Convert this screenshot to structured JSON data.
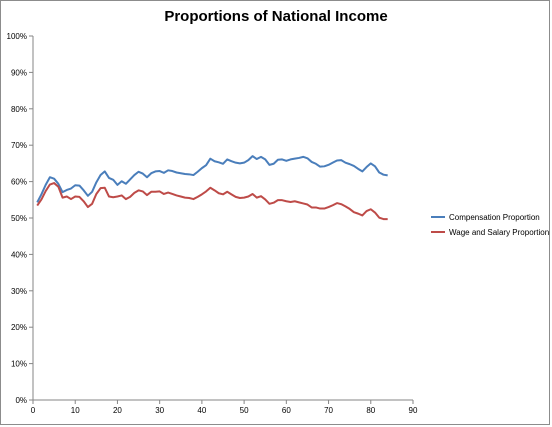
{
  "chart_data": {
    "type": "line",
    "title": "Proportions of National Income",
    "xlabel": "",
    "ylabel": "",
    "xlim": [
      0,
      90
    ],
    "ylim": [
      0,
      100
    ],
    "x_ticks": [
      "0",
      "10",
      "20",
      "30",
      "40",
      "50",
      "60",
      "70",
      "80",
      "90"
    ],
    "y_ticks": [
      "0%",
      "10%",
      "20%",
      "30%",
      "40%",
      "50%",
      "60%",
      "70%",
      "80%",
      "90%",
      "100%"
    ],
    "grid": false,
    "legend_position": "right",
    "x": [
      1,
      2,
      3,
      4,
      5,
      6,
      7,
      8,
      9,
      10,
      11,
      12,
      13,
      14,
      15,
      16,
      17,
      18,
      19,
      20,
      21,
      22,
      23,
      24,
      25,
      26,
      27,
      28,
      29,
      30,
      31,
      32,
      33,
      34,
      35,
      36,
      37,
      38,
      39,
      40,
      41,
      42,
      43,
      44,
      45,
      46,
      47,
      48,
      49,
      50,
      51,
      52,
      53,
      54,
      55,
      56,
      57,
      58,
      59,
      60,
      61,
      62,
      63,
      64,
      65,
      66,
      67,
      68,
      69,
      70,
      71,
      72,
      73,
      74,
      75,
      76,
      77,
      78,
      79,
      80,
      81,
      82,
      83,
      84
    ],
    "series": [
      {
        "name": "Compensation Proportion",
        "color": "#4a7ebb",
        "values": [
          54.3,
          56.5,
          59.1,
          61.2,
          60.8,
          59.4,
          57.1,
          57.7,
          58.1,
          59.0,
          58.9,
          57.6,
          56.1,
          57.2,
          59.8,
          61.8,
          62.8,
          61.0,
          60.5,
          59.1,
          60.1,
          59.4,
          60.6,
          61.8,
          62.7,
          62.2,
          61.2,
          62.3,
          62.8,
          62.9,
          62.4,
          63.1,
          62.9,
          62.5,
          62.3,
          62.1,
          62.0,
          61.8,
          62.7,
          63.7,
          64.5,
          66.3,
          65.6,
          65.3,
          64.9,
          66.1,
          65.6,
          65.2,
          65.0,
          65.2,
          65.9,
          67.0,
          66.2,
          66.8,
          66.1,
          64.6,
          64.9,
          66.0,
          66.1,
          65.7,
          66.1,
          66.3,
          66.5,
          66.8,
          66.4,
          65.4,
          64.9,
          64.1,
          64.2,
          64.6,
          65.2,
          65.8,
          65.9,
          65.2,
          64.8,
          64.3,
          63.5,
          62.8,
          64.0,
          65.0,
          64.2,
          62.5,
          61.9,
          61.7
        ]
      },
      {
        "name": "Wage and Salary Proportion",
        "color": "#be4b48",
        "values": [
          53.4,
          55.1,
          57.4,
          59.2,
          59.6,
          58.6,
          55.6,
          55.9,
          55.2,
          55.9,
          55.8,
          54.6,
          53.0,
          53.9,
          56.6,
          58.2,
          58.3,
          55.9,
          55.7,
          55.9,
          56.2,
          55.2,
          55.8,
          56.9,
          57.6,
          57.3,
          56.3,
          57.2,
          57.2,
          57.3,
          56.6,
          57.0,
          56.6,
          56.2,
          55.9,
          55.6,
          55.5,
          55.2,
          55.8,
          56.5,
          57.3,
          58.3,
          57.6,
          56.8,
          56.5,
          57.2,
          56.5,
          55.8,
          55.5,
          55.6,
          55.9,
          56.6,
          55.6,
          56.0,
          55.1,
          53.9,
          54.2,
          54.9,
          54.9,
          54.6,
          54.4,
          54.6,
          54.3,
          54.0,
          53.7,
          52.9,
          52.9,
          52.6,
          52.6,
          53.0,
          53.5,
          54.1,
          53.8,
          53.2,
          52.5,
          51.6,
          51.2,
          50.7,
          51.9,
          52.4,
          51.5,
          50.1,
          49.7,
          49.7
        ]
      }
    ]
  }
}
